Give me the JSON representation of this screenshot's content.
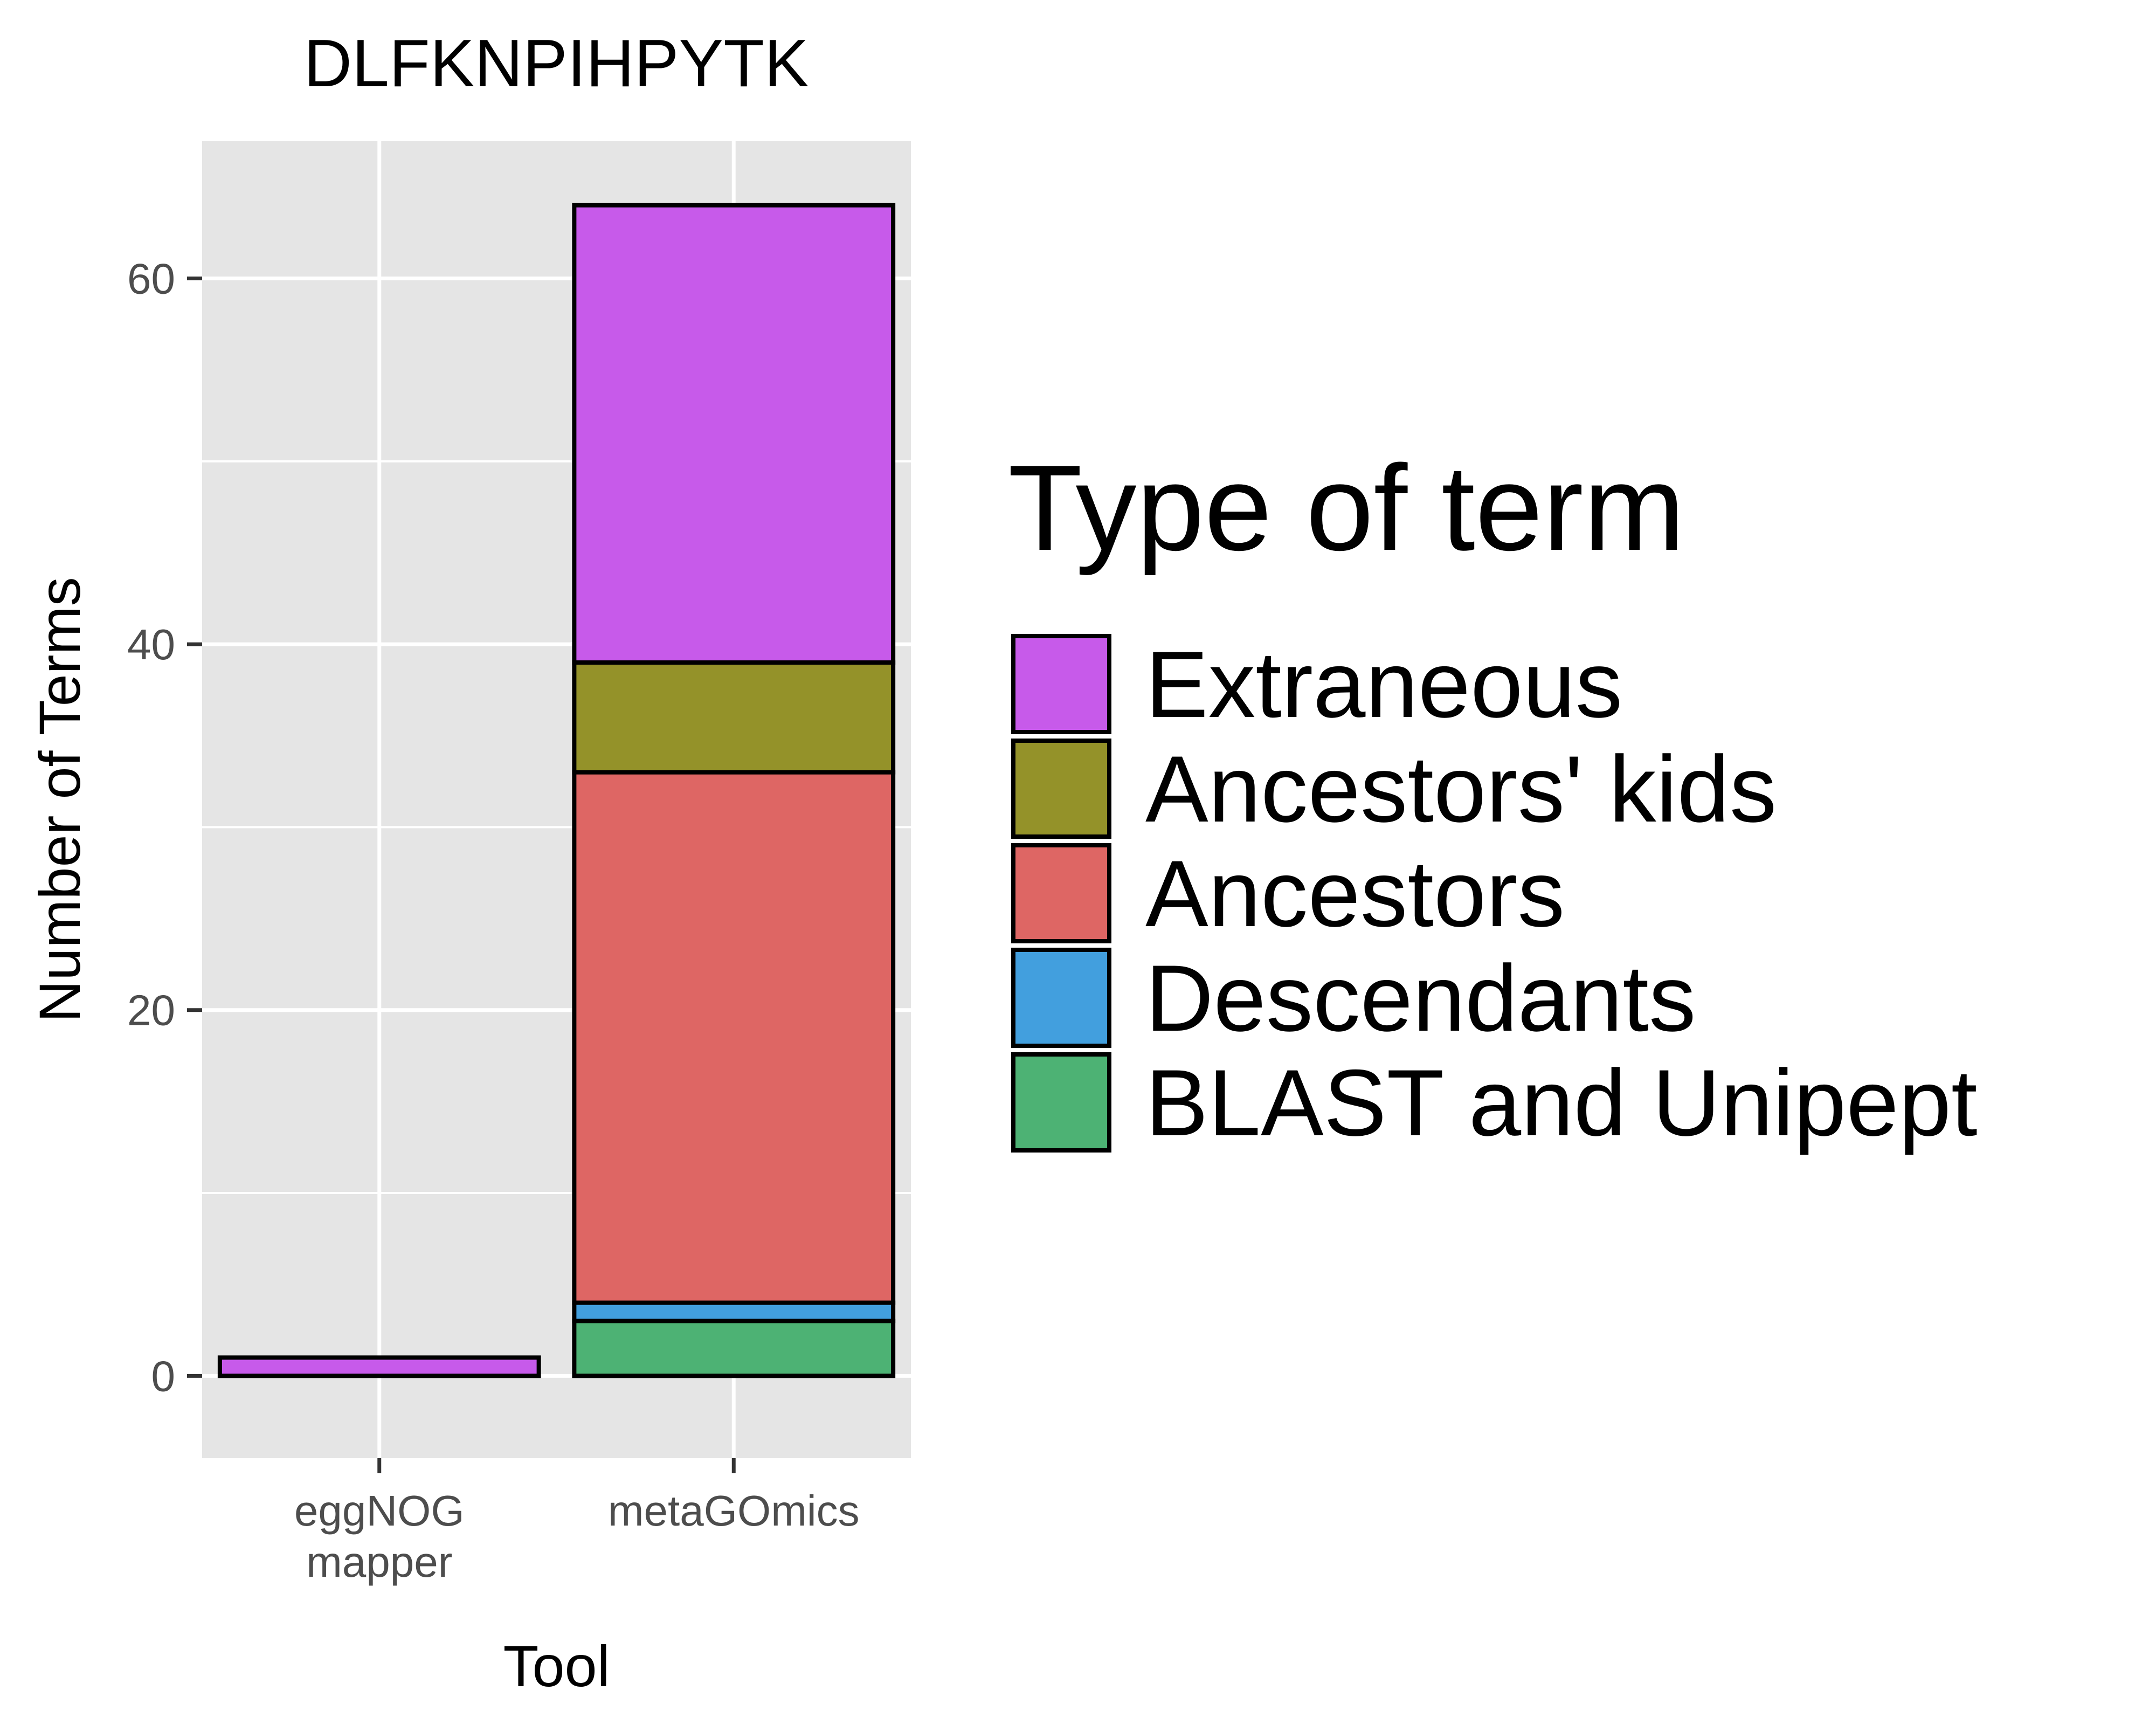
{
  "chart_data": {
    "type": "bar",
    "stacked": true,
    "title": "DLFKNPIHPYTK",
    "xlabel": "Tool",
    "ylabel": "Number of Terms",
    "categories": [
      [
        "eggNOG",
        "mapper"
      ],
      [
        "metaGOmics"
      ]
    ],
    "ylim": [
      -4.5,
      67.5
    ],
    "yticks": [
      0,
      20,
      40,
      60
    ],
    "grid": true,
    "legend": {
      "title": "Type of term",
      "position": "right"
    },
    "series": [
      {
        "name": "BLAST and Unipept",
        "color": "#4DB274",
        "values": [
          0,
          3
        ]
      },
      {
        "name": "Descendants",
        "color": "#429FDE",
        "values": [
          0,
          1
        ]
      },
      {
        "name": "Ancestors",
        "color": "#DE6664",
        "values": [
          0,
          29
        ]
      },
      {
        "name": "Ancestors' kids",
        "color": "#949229",
        "values": [
          0,
          6
        ]
      },
      {
        "name": "Extraneous",
        "color": "#C75AEA",
        "values": [
          1,
          25
        ]
      }
    ],
    "legend_order": [
      "Extraneous",
      "Ancestors' kids",
      "Ancestors",
      "Descendants",
      "BLAST and Unipept"
    ]
  }
}
